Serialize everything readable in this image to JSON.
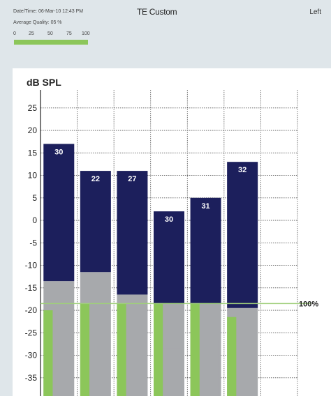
{
  "header": {
    "datetime_label": "Date/Time:",
    "datetime_value": "06-Mar-10 12:43 PM",
    "quality_label": "Average Quality:",
    "quality_value": "05 %",
    "quality_scale": [
      "0",
      "25",
      "50",
      "75",
      "100"
    ],
    "quality_fraction": 1.0,
    "title": "TE Custom",
    "ear": "Left"
  },
  "chart_data": {
    "type": "bar",
    "ylabel": "dB SPL",
    "ylim": [
      -35,
      29
    ],
    "yticks": [
      25,
      20,
      15,
      10,
      5,
      0,
      -5,
      -10,
      -15,
      -20,
      -25,
      -30,
      -35
    ],
    "reference_line": {
      "value": -18.5,
      "label": "100%"
    },
    "grid": true,
    "bars": [
      {
        "label": "30",
        "top": 17,
        "gray_top": -13.5,
        "green_top": -20,
        "inner_gray_top": null
      },
      {
        "label": "22",
        "top": 11,
        "gray_top": -11.5,
        "green_top": -18.5,
        "inner_gray_top": null
      },
      {
        "label": "27",
        "top": 11,
        "gray_top": -16.5,
        "green_top": -18.5,
        "inner_gray_top": null
      },
      {
        "label": "30",
        "top": 2,
        "gray_top": -18.5,
        "green_top": -18.5,
        "inner_gray_top": -28.5
      },
      {
        "label": "31",
        "top": 5,
        "gray_top": -18.5,
        "green_top": -18.5,
        "inner_gray_top": -26.5
      },
      {
        "label": "32",
        "top": 13,
        "gray_top": -19.5,
        "green_top": -21.5,
        "inner_gray_top": null
      }
    ],
    "colors": {
      "bar": "#1c1f5c",
      "gray": "#a7a9ac",
      "green": "#8cc65a",
      "reference": "#9fcf7a",
      "grid": "#555555"
    }
  }
}
